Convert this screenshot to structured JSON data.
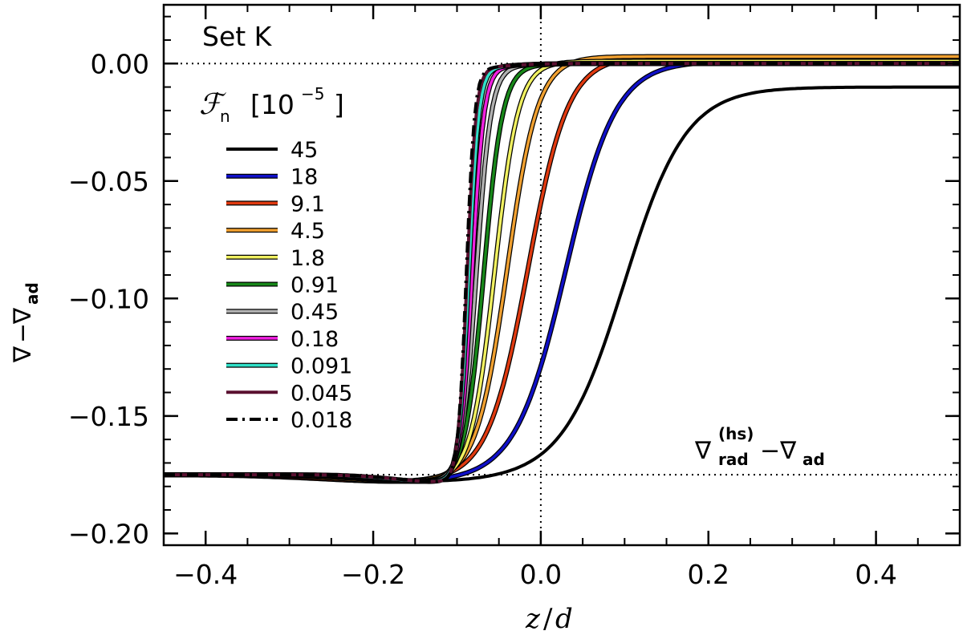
{
  "chart_data": {
    "type": "line",
    "title": "",
    "panel_label": "Set K",
    "legend_title_symbol": "ℱ",
    "legend_title_sub": "n",
    "legend_title_unit_base": "[10",
    "legend_title_unit_exp": "−5",
    "legend_title_unit_close": "]",
    "xlabel_parts": [
      "z",
      "/",
      "d"
    ],
    "ylabel_parts": {
      "nabla": "∇",
      "minus": "−",
      "sub": "ad"
    },
    "xlim": [
      -0.45,
      0.5
    ],
    "ylim": [
      -0.205,
      0.025
    ],
    "xticks": [
      -0.4,
      -0.2,
      0.0,
      0.2,
      0.4
    ],
    "xtick_labels": [
      "−0.4",
      "−0.2",
      "0.0",
      "0.2",
      "0.4"
    ],
    "yticks": [
      0.0,
      -0.05,
      -0.1,
      -0.15,
      -0.2
    ],
    "ytick_labels": [
      "0.00",
      "−0.05",
      "−0.10",
      "−0.15",
      "−0.20"
    ],
    "grid": false,
    "legend_position": "top-left",
    "reference_lines": {
      "horizontal": [
        0.0,
        -0.175
      ],
      "vertical": [
        0.0
      ]
    },
    "annotation": {
      "text_main": "∇",
      "sup": "(hs)",
      "sub": "rad",
      "rest": "−∇",
      "rest_sub": "ad"
    },
    "baseline": -0.175,
    "series": [
      {
        "name": "45",
        "color": "#000000",
        "outline": false,
        "dash": "solid",
        "center": 0.1,
        "width": 0.105,
        "end": -0.01
      },
      {
        "name": "18",
        "color": "#1010c8",
        "outline": true,
        "dash": "solid",
        "center": 0.03,
        "width": 0.085,
        "end": 0.001
      },
      {
        "name": "9.1",
        "color": "#e03a10",
        "outline": true,
        "dash": "solid",
        "center": -0.015,
        "width": 0.068,
        "end": 0.003
      },
      {
        "name": "4.5",
        "color": "#f0a030",
        "outline": true,
        "dash": "solid",
        "center": -0.04,
        "width": 0.052,
        "end": 0.003
      },
      {
        "name": "1.8",
        "color": "#f0f060",
        "outline": true,
        "dash": "solid",
        "center": -0.055,
        "width": 0.04,
        "end": 0.001
      },
      {
        "name": "0.91",
        "color": "#18881a",
        "outline": true,
        "dash": "solid",
        "center": -0.068,
        "width": 0.032,
        "end": 0.0
      },
      {
        "name": "0.45",
        "color": "#b0b0b0",
        "outline": true,
        "dash": "solid",
        "center": -0.077,
        "width": 0.025,
        "end": 0.0
      },
      {
        "name": "0.18",
        "color": "#f020e0",
        "outline": true,
        "dash": "solid",
        "center": -0.082,
        "width": 0.02,
        "end": 0.0
      },
      {
        "name": "0.091",
        "color": "#30e0c8",
        "outline": true,
        "dash": "solid",
        "center": -0.086,
        "width": 0.017,
        "end": 0.0
      },
      {
        "name": "0.045",
        "color": "#5a1030",
        "outline": false,
        "dash": "solid",
        "center": -0.088,
        "width": 0.015,
        "end": 0.0
      },
      {
        "name": "0.018",
        "color": "#000000",
        "outline": false,
        "dash": "dashdot",
        "center": -0.089,
        "width": 0.014,
        "end": 0.0
      }
    ]
  }
}
